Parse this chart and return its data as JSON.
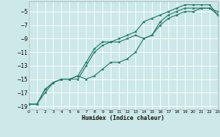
{
  "xlabel": "Humidex (Indice chaleur)",
  "bg_color": "#cce8e8",
  "grid_color": "#ffffff",
  "line_color": "#2a7a6a",
  "xlim": [
    0,
    23
  ],
  "ylim": [
    -19.5,
    -3.5
  ],
  "xticks": [
    0,
    1,
    2,
    3,
    4,
    5,
    6,
    7,
    8,
    9,
    10,
    11,
    12,
    13,
    14,
    15,
    16,
    17,
    18,
    19,
    20,
    21,
    22,
    23
  ],
  "yticks": [
    -19,
    -17,
    -15,
    -13,
    -11,
    -9,
    -7,
    -5
  ],
  "series1_x": [
    0,
    1,
    2,
    3,
    4,
    5,
    6,
    7,
    8,
    9,
    10,
    11,
    12,
    13,
    14,
    15,
    16,
    17,
    18,
    19,
    20,
    21,
    22,
    23
  ],
  "series1_y": [
    -18.7,
    -18.7,
    -17.0,
    -15.5,
    -15.0,
    -15.0,
    -14.5,
    -15.0,
    -14.5,
    -13.5,
    -12.5,
    -12.5,
    -12.0,
    -11.0,
    -9.0,
    -8.5,
    -7.0,
    -6.0,
    -5.5,
    -5.0,
    -5.0,
    -4.5,
    -4.5,
    -5.5
  ],
  "series2_x": [
    0,
    1,
    2,
    3,
    4,
    5,
    6,
    7,
    8,
    9,
    10,
    11,
    12,
    13,
    14,
    15,
    16,
    17,
    18,
    19,
    20,
    21,
    22,
    23
  ],
  "series2_y": [
    -18.7,
    -18.7,
    -16.5,
    -15.5,
    -15.0,
    -15.0,
    -14.5,
    -12.5,
    -10.5,
    -9.5,
    -9.5,
    -9.5,
    -9.0,
    -8.5,
    -9.0,
    -8.5,
    -6.5,
    -5.5,
    -5.0,
    -4.5,
    -4.5,
    -4.5,
    -4.5,
    -5.0
  ],
  "series3_x": [
    0,
    1,
    2,
    3,
    4,
    5,
    6,
    7,
    8,
    9,
    10,
    11,
    12,
    13,
    14,
    15,
    16,
    17,
    18,
    19,
    20,
    21,
    22,
    23
  ],
  "series3_y": [
    -18.7,
    -18.7,
    -16.5,
    -15.5,
    -15.0,
    -15.0,
    -15.0,
    -13.0,
    -11.0,
    -10.0,
    -9.5,
    -9.0,
    -8.5,
    -8.0,
    -6.5,
    -6.0,
    -5.5,
    -5.0,
    -4.5,
    -4.0,
    -4.0,
    -4.0,
    -4.0,
    -5.5
  ]
}
